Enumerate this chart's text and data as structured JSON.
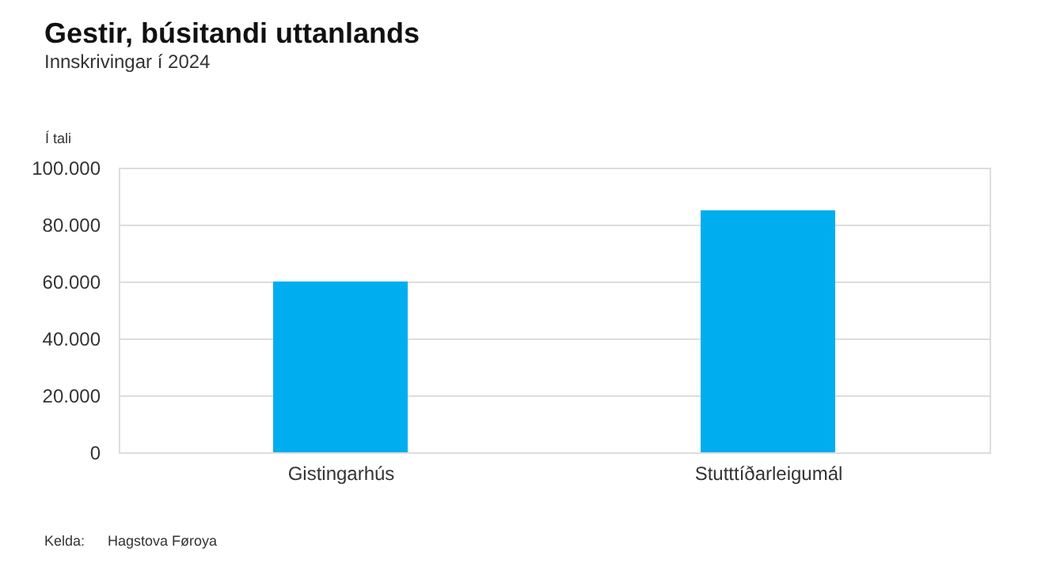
{
  "chart_data": {
    "type": "bar",
    "title": "Gestir, búsitandi uttanlands",
    "subtitle": "Innskrivingar í 2024",
    "ylabel": "Í tali",
    "categories": [
      "Gistingarhús",
      "Stutttíðarleigumál"
    ],
    "values": [
      60000,
      85000
    ],
    "color": "#00aeef",
    "ylim": [
      0,
      100000
    ],
    "yticks": [
      0,
      {
        "value": 20000,
        "label": "20.000"
      },
      {
        "value": 40000,
        "label": "40.000"
      },
      {
        "value": 60000,
        "label": "60.000"
      },
      {
        "value": 80000,
        "label": "80.000"
      },
      {
        "value": 100000,
        "label": "100.000"
      }
    ],
    "grid": "y",
    "annotations": [
      "Kelda:",
      "Hagstova Føroya"
    ]
  }
}
